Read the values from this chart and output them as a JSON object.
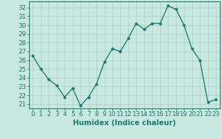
{
  "x": [
    0,
    1,
    2,
    3,
    4,
    5,
    6,
    7,
    8,
    9,
    10,
    11,
    12,
    13,
    14,
    15,
    16,
    17,
    18,
    19,
    20,
    21,
    22,
    23
  ],
  "y": [
    26.5,
    25.0,
    23.8,
    23.1,
    21.8,
    22.8,
    20.8,
    21.8,
    23.3,
    25.8,
    27.3,
    27.0,
    28.5,
    30.2,
    29.5,
    30.2,
    30.2,
    32.2,
    31.8,
    30.0,
    27.3,
    26.0,
    21.2,
    21.5
  ],
  "line_color": "#1a7a6e",
  "marker": "o",
  "markersize": 2.5,
  "linewidth": 1.0,
  "bg_color": "#c8e8e0",
  "grid_color": "#aacfc8",
  "xlabel": "Humidex (Indice chaleur)",
  "ylabel_ticks": [
    21,
    22,
    23,
    24,
    25,
    26,
    27,
    28,
    29,
    30,
    31,
    32
  ],
  "ylim": [
    20.5,
    32.7
  ],
  "xlim": [
    -0.5,
    23.5
  ],
  "xlabel_fontsize": 7.5,
  "tick_fontsize": 6.5,
  "tick_color": "#1a7a6e"
}
